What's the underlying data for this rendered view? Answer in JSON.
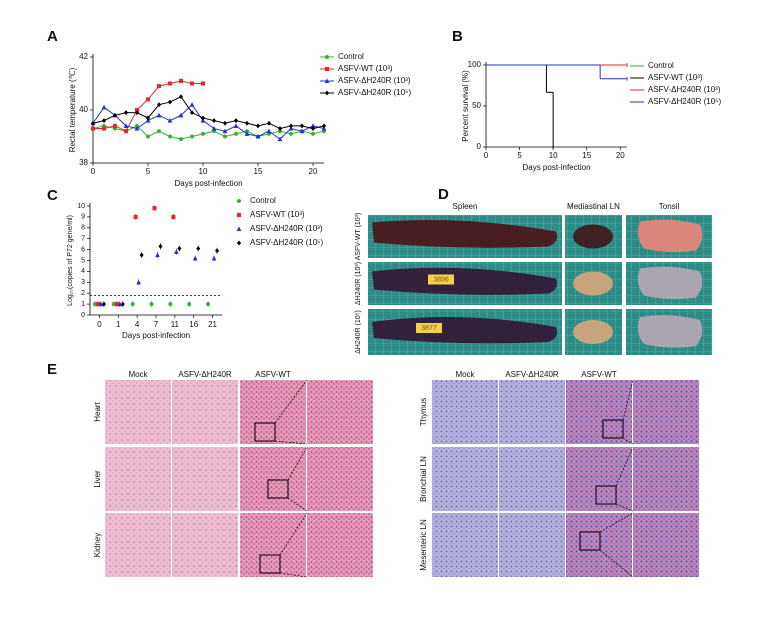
{
  "chart_data": [
    {
      "panel": "A",
      "type": "line",
      "ylabel": "Rectal temperature (℃)",
      "xlabel": "Days post-infection",
      "x": [
        0,
        1,
        2,
        3,
        4,
        5,
        6,
        7,
        8,
        9,
        10,
        11,
        12,
        13,
        14,
        15,
        16,
        17,
        18,
        19,
        20,
        21
      ],
      "xlim": [
        0,
        21
      ],
      "xticks": [
        0,
        5,
        10,
        15,
        20
      ],
      "ylim": [
        38,
        42
      ],
      "yticks": [
        38,
        40,
        42
      ],
      "legend": "right",
      "series": [
        {
          "name": "Control",
          "color": "#33b233",
          "marker": "circle",
          "values": [
            39.3,
            39.4,
            39.3,
            39.2,
            39.4,
            39.0,
            39.2,
            39.0,
            38.9,
            39.0,
            39.1,
            39.2,
            39.0,
            39.1,
            39.2,
            39.0,
            39.1,
            39.2,
            39.1,
            39.2,
            39.1,
            39.2
          ]
        },
        {
          "name": "ASFV-WT (10³)",
          "color": "#e8262a",
          "marker": "square",
          "values": [
            39.3,
            39.3,
            39.4,
            39.2,
            40.0,
            40.4,
            40.9,
            41.0,
            41.1,
            41.0,
            41.0,
            null,
            null,
            null,
            null,
            null,
            null,
            null,
            null,
            null,
            null,
            null
          ]
        },
        {
          "name": "ASFV-ΔH240R (10³)",
          "color": "#2233cc",
          "marker": "triangle",
          "values": [
            39.5,
            40.1,
            39.8,
            39.4,
            39.3,
            39.6,
            39.8,
            39.6,
            39.8,
            40.2,
            39.6,
            39.3,
            39.2,
            39.4,
            39.1,
            39.0,
            39.2,
            38.9,
            39.3,
            39.2,
            39.4,
            39.3
          ]
        },
        {
          "name": "ASFV-ΔH240R (10⁵)",
          "color": "#000000",
          "marker": "diamond",
          "values": [
            39.5,
            39.6,
            39.8,
            39.9,
            39.9,
            39.7,
            40.2,
            40.3,
            40.5,
            39.9,
            39.7,
            39.6,
            39.5,
            39.6,
            39.5,
            39.4,
            39.5,
            39.3,
            39.4,
            39.4,
            39.3,
            39.4
          ]
        }
      ]
    },
    {
      "panel": "B",
      "type": "step",
      "ylabel": "Percent survival (%)",
      "xlabel": "Days post-infection",
      "xlim": [
        0,
        21
      ],
      "xticks": [
        0,
        5,
        10,
        15,
        20
      ],
      "ylim": [
        0,
        100
      ],
      "yticks": [
        0,
        50,
        100
      ],
      "legend": "right",
      "series": [
        {
          "name": "Control",
          "color": "#33b233",
          "x": [
            0,
            21
          ],
          "values": [
            100,
            100
          ]
        },
        {
          "name": "ASFV-WT (10³)",
          "color": "#000000",
          "x": [
            0,
            9,
            10
          ],
          "values": [
            100,
            66.7,
            0
          ]
        },
        {
          "name": "ASFV-ΔH240R (10³)",
          "color": "#e8262a",
          "x": [
            0,
            21
          ],
          "values": [
            100,
            100
          ]
        },
        {
          "name": "ASFV-ΔH240R (10⁵)",
          "color": "#2233cc",
          "x": [
            0,
            17,
            21
          ],
          "values": [
            100,
            83.3,
            83.3
          ]
        }
      ]
    },
    {
      "panel": "C",
      "type": "dot",
      "ylabel": "Log₁₀(copies of P72 gene/ml)",
      "xlabel": "Days post-infection",
      "categories": [
        "0",
        "1",
        "4",
        "7",
        "11",
        "16",
        "21"
      ],
      "ylim": [
        0,
        10
      ],
      "yticks": [
        0,
        1,
        2,
        3,
        4,
        5,
        6,
        7,
        8,
        9,
        10
      ],
      "detection_limit": 1.8,
      "legend": "right",
      "series": [
        {
          "name": "Control",
          "color": "#33b233",
          "marker": "circle",
          "values": [
            1,
            1,
            1,
            1,
            1,
            1,
            1
          ]
        },
        {
          "name": "ASFV-WT (10³)",
          "color": "#e8262a",
          "marker": "square",
          "values": [
            1,
            1,
            9.0,
            9.8,
            9.0,
            null,
            null
          ]
        },
        {
          "name": "ASFV-ΔH240R (10³)",
          "color": "#2233cc",
          "marker": "triangle",
          "values": [
            1,
            1,
            3.0,
            5.5,
            5.8,
            5.2,
            5.2
          ]
        },
        {
          "name": "ASFV-ΔH240R (10⁵)",
          "color": "#000000",
          "marker": "diamond",
          "values": [
            1,
            1,
            5.5,
            6.3,
            6.1,
            6.1,
            5.9
          ]
        }
      ]
    }
  ],
  "panel_d": {
    "panel": "D",
    "columns": [
      "Spleen",
      "Mediastinal LN",
      "Tonsil"
    ],
    "rows": [
      {
        "label": "ASFV-WT (10³)"
      },
      {
        "label": "ΔH240R (10³)",
        "tag": "3896"
      },
      {
        "label": "ΔH240R (10⁵)",
        "tag": "3877"
      }
    ]
  },
  "panel_e": {
    "panel": "E",
    "left": {
      "columns": [
        "Mock",
        "ASFV-ΔH240R",
        "ASFV-WT"
      ],
      "rows": [
        "Heart",
        "Liver",
        "Kidney"
      ]
    },
    "right": {
      "columns": [
        "Mock",
        "ASFV-ΔH240R",
        "ASFV-WT"
      ],
      "rows": [
        "Thymus",
        "Bronchial LN",
        "Mesenteric LN"
      ]
    }
  }
}
